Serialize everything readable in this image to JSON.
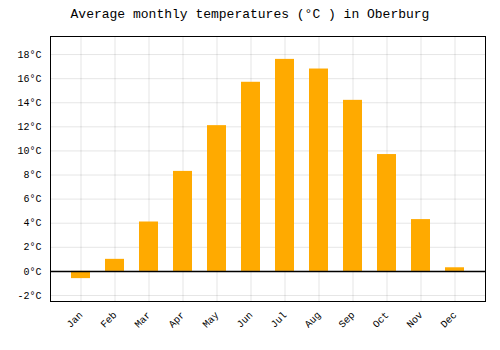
{
  "chart_data": {
    "type": "bar",
    "title": "Average monthly temperatures (°C ) in Oberburg",
    "categories": [
      "Jan",
      "Feb",
      "Mar",
      "Apr",
      "May",
      "Jun",
      "Jul",
      "Aug",
      "Sep",
      "Oct",
      "Nov",
      "Dec"
    ],
    "values": [
      -0.6,
      1.0,
      4.1,
      8.3,
      12.1,
      15.7,
      17.6,
      16.8,
      14.2,
      9.7,
      4.3,
      0.3
    ],
    "color": "#FFAA00",
    "ylim": [
      -2.5,
      19.5
    ],
    "yticks": [
      {
        "value": -2,
        "label": "-2°C"
      },
      {
        "value": 0,
        "label": "0°C"
      },
      {
        "value": 2,
        "label": "2°C"
      },
      {
        "value": 4,
        "label": "4°C"
      },
      {
        "value": 6,
        "label": "6°C"
      },
      {
        "value": 8,
        "label": "8°C"
      },
      {
        "value": 10,
        "label": "10°C"
      },
      {
        "value": 12,
        "label": "12°C"
      },
      {
        "value": 14,
        "label": "14°C"
      },
      {
        "value": 16,
        "label": "16°C"
      },
      {
        "value": 18,
        "label": "18°C"
      }
    ],
    "grid": true
  }
}
